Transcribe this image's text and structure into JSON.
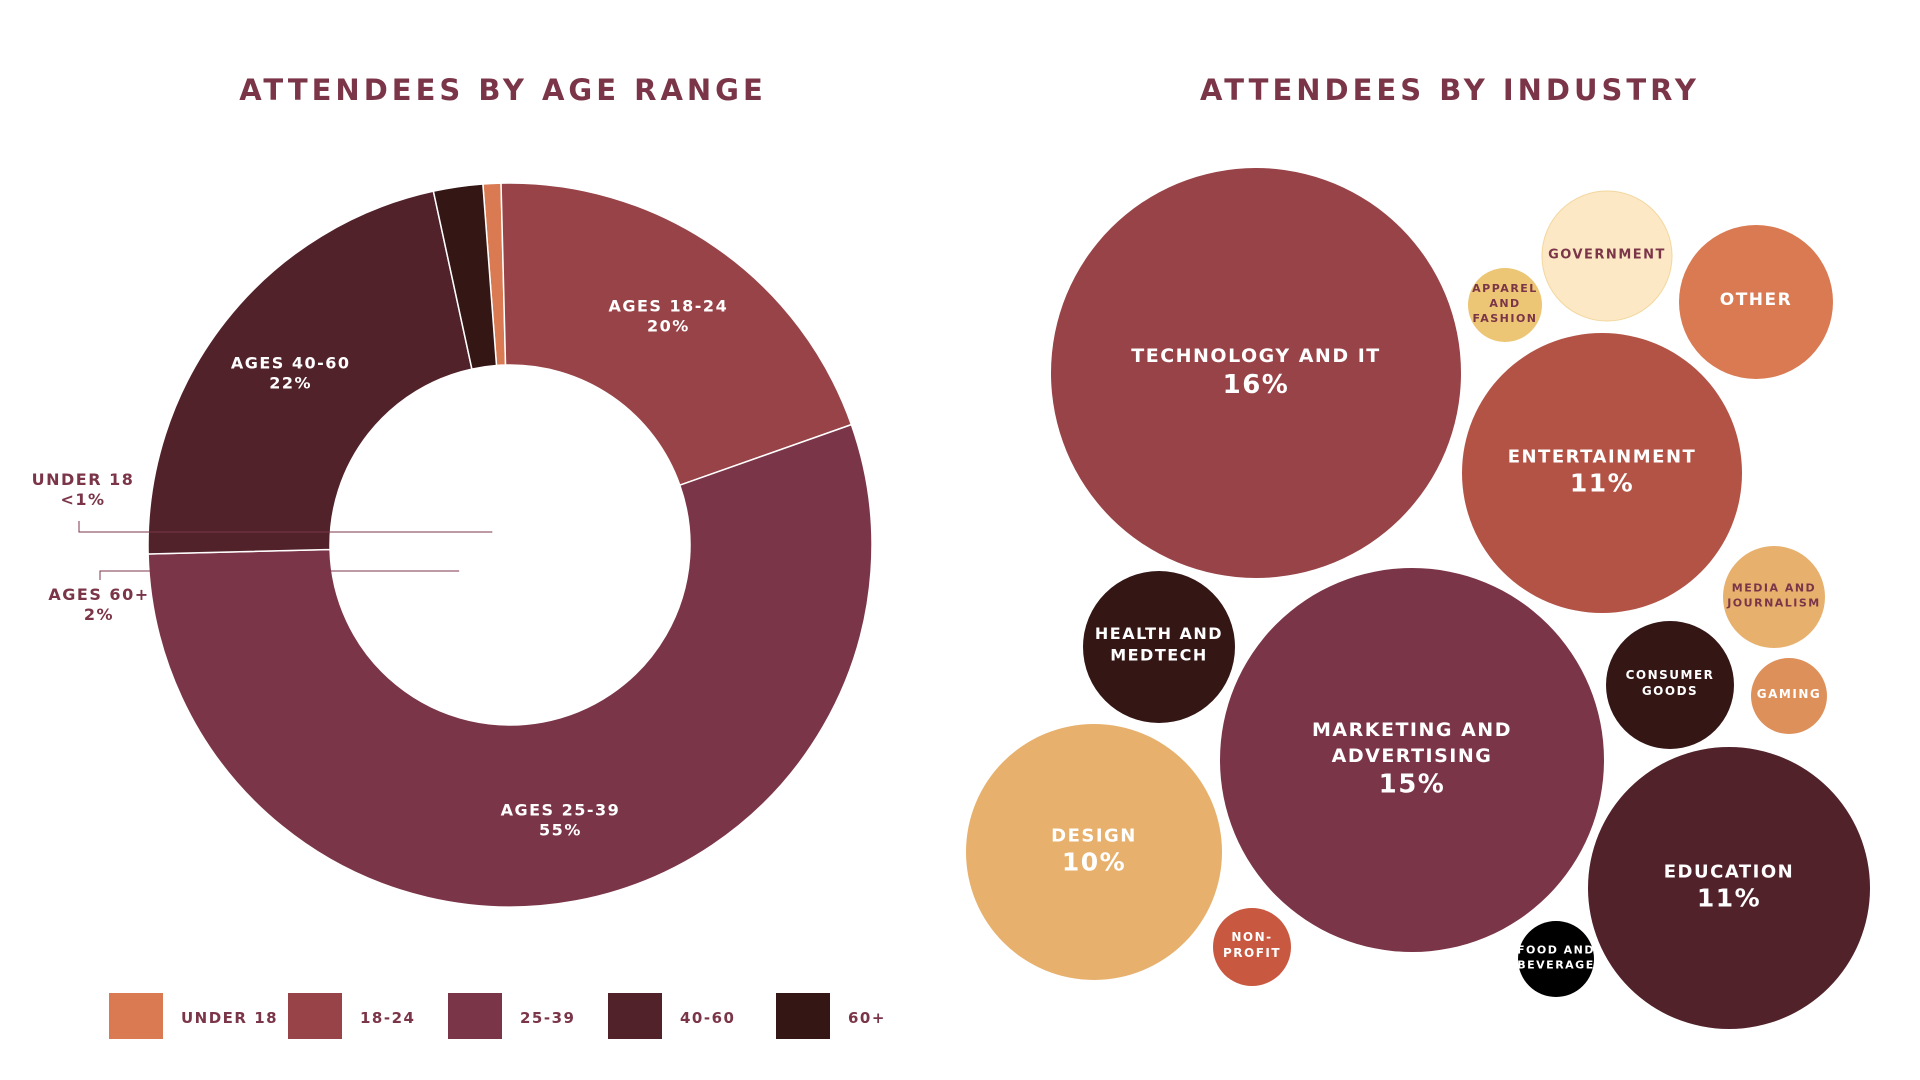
{
  "chart_data": [
    {
      "type": "pie",
      "title": "ATTENDEES BY AGE RANGE",
      "categories": [
        "UNDER 18",
        "18-24",
        "25-39",
        "40-60",
        "60+"
      ],
      "values": [
        0.8,
        20,
        55,
        22,
        2.2
      ],
      "slice_labels": [
        {
          "name": "UNDER 18",
          "value": "<1%"
        },
        {
          "name": "AGES 18-24",
          "value": "20%"
        },
        {
          "name": "AGES 25-39",
          "value": "55%"
        },
        {
          "name": "AGES 40-60",
          "value": "22%"
        },
        {
          "name": "AGES 60+",
          "value": "2%"
        }
      ],
      "colors": [
        "#d97a52",
        "#984347",
        "#7b3548",
        "#52222b",
        "#341615"
      ],
      "legend": {
        "placement": "bottom",
        "items": [
          "UNDER 18",
          "18-24",
          "25-39",
          "40-60",
          "60+"
        ]
      },
      "donut": true
    },
    {
      "type": "bubble",
      "title": "ATTENDEES BY INDUSTRY",
      "bubbles": [
        {
          "name": [
            "TECHNOLOGY AND IT"
          ],
          "value": "16%",
          "color": "#984347",
          "text_color": "#ffffff"
        },
        {
          "name": [
            "MARKETING AND",
            "ADVERTISING"
          ],
          "value": "15%",
          "color": "#7b3548",
          "text_color": "#ffffff"
        },
        {
          "name": [
            "ENTERTAINMENT"
          ],
          "value": "11%",
          "color": "#b35346",
          "text_color": "#ffffff"
        },
        {
          "name": [
            "EDUCATION"
          ],
          "value": "11%",
          "color": "#52222b",
          "text_color": "#ffffff"
        },
        {
          "name": [
            "DESIGN"
          ],
          "value": "10%",
          "color": "#e7b06d",
          "text_color": "#ffffff"
        },
        {
          "name": [
            "HEALTH AND",
            "MEDTECH"
          ],
          "value": "",
          "color": "#341615",
          "text_color": "#ffffff"
        },
        {
          "name": [
            "OTHER"
          ],
          "value": "",
          "color": "#d97a52",
          "text_color": "#ffffff"
        },
        {
          "name": [
            "GOVERNMENT"
          ],
          "value": "",
          "color": "#fde8c5",
          "text_color": "#7b3548"
        },
        {
          "name": [
            "APPAREL",
            "AND",
            "FASHION"
          ],
          "value": "",
          "color": "#ecc675",
          "text_color": "#7b3548"
        },
        {
          "name": [
            "MEDIA AND",
            "JOURNALISM"
          ],
          "value": "",
          "color": "#e7b06d",
          "text_color": "#7b3548"
        },
        {
          "name": [
            "GAMING"
          ],
          "value": "",
          "color": "#de905a",
          "text_color": "#ffffff"
        },
        {
          "name": [
            "CONSUMER",
            "GOODS"
          ],
          "value": "",
          "color": "#341615",
          "text_color": "#ffffff"
        },
        {
          "name": [
            "NON-",
            "PROFIT"
          ],
          "value": "",
          "color": "#c8583f",
          "text_color": "#ffffff"
        },
        {
          "name": [
            "FOOD AND",
            "BEVERAGE"
          ],
          "value": "",
          "color": "#000000",
          "text_color": "#ffffff"
        }
      ]
    }
  ]
}
